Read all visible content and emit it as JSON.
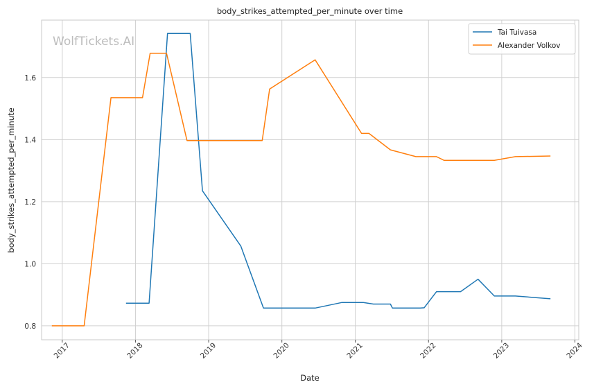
{
  "chart_data": {
    "type": "line",
    "title": "body_strikes_attempted_per_minute over time",
    "xlabel": "Date",
    "ylabel": "body_strikes_attempted_per_minute",
    "watermark": "WolfTickets.AI",
    "x_ticks": [
      "2017",
      "2018",
      "2019",
      "2020",
      "2021",
      "2022",
      "2023",
      "2024"
    ],
    "y_ticks": [
      "0.8",
      "1.0",
      "1.2",
      "1.4",
      "1.6"
    ],
    "ylim": [
      0.755,
      1.785
    ],
    "xlim": [
      "2016-09-20",
      "2024-01-20"
    ],
    "grid": true,
    "legend_position": "top-right",
    "series": [
      {
        "name": "Tai Tuivasa",
        "color": "#1f77b4",
        "points": [
          [
            "2017-11-15",
            0.873
          ],
          [
            "2018-03-10",
            0.873
          ],
          [
            "2018-06-10",
            1.742
          ],
          [
            "2018-10-01",
            1.742
          ],
          [
            "2018-12-01",
            1.235
          ],
          [
            "2019-06-10",
            1.057
          ],
          [
            "2019-10-01",
            0.857
          ],
          [
            "2020-06-15",
            0.857
          ],
          [
            "2020-10-25",
            0.875
          ],
          [
            "2021-02-10",
            0.875
          ],
          [
            "2021-04-01",
            0.87
          ],
          [
            "2021-06-25",
            0.87
          ],
          [
            "2021-07-05",
            0.857
          ],
          [
            "2021-11-20",
            0.857
          ],
          [
            "2021-12-10",
            0.858
          ],
          [
            "2022-02-10",
            0.91
          ],
          [
            "2022-06-10",
            0.91
          ],
          [
            "2022-09-05",
            0.95
          ],
          [
            "2022-11-25",
            0.896
          ],
          [
            "2023-03-10",
            0.896
          ],
          [
            "2023-09-01",
            0.887
          ]
        ]
      },
      {
        "name": "Alexander Volkov",
        "color": "#ff7f0e",
        "points": [
          [
            "2016-11-10",
            0.8
          ],
          [
            "2017-04-20",
            0.8
          ],
          [
            "2017-09-01",
            1.535
          ],
          [
            "2018-02-05",
            1.535
          ],
          [
            "2018-03-15",
            1.678
          ],
          [
            "2018-06-05",
            1.678
          ],
          [
            "2018-09-15",
            1.397
          ],
          [
            "2019-09-25",
            1.397
          ],
          [
            "2019-11-01",
            1.563
          ],
          [
            "2020-06-15",
            1.657
          ],
          [
            "2021-02-01",
            1.42
          ],
          [
            "2021-03-10",
            1.42
          ],
          [
            "2021-06-25",
            1.367
          ],
          [
            "2021-10-30",
            1.345
          ],
          [
            "2022-02-10",
            1.345
          ],
          [
            "2022-03-20",
            1.333
          ],
          [
            "2022-11-25",
            1.333
          ],
          [
            "2023-03-10",
            1.345
          ],
          [
            "2023-09-01",
            1.347
          ]
        ]
      }
    ]
  }
}
